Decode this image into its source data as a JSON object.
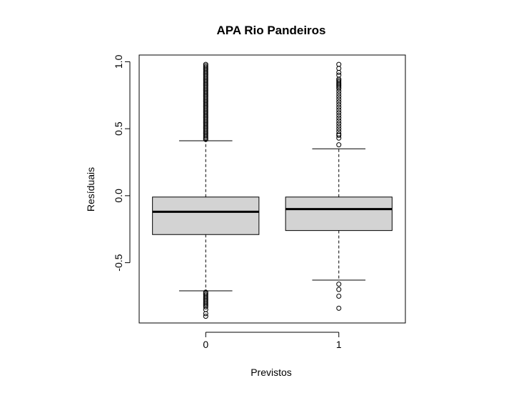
{
  "chart_data": {
    "type": "boxplot",
    "title": "APA Rio Pandeiros",
    "xlabel": "Previstos",
    "ylabel": "Resíduais",
    "ylim": [
      -0.95,
      1.05
    ],
    "yticks": [
      1.0,
      0.5,
      0.0,
      -0.5
    ],
    "ytick_labels": [
      "1.0",
      "0.5",
      "0.0",
      "-0.5"
    ],
    "categories": [
      "0",
      "1"
    ],
    "boxes": [
      {
        "category": "0",
        "whisker_high": 0.41,
        "q3": -0.01,
        "median": -0.12,
        "q1": -0.29,
        "whisker_low": -0.71,
        "outliers_high": [
          0.42,
          0.43,
          0.44,
          0.45,
          0.46,
          0.47,
          0.48,
          0.49,
          0.5,
          0.51,
          0.52,
          0.53,
          0.54,
          0.55,
          0.56,
          0.57,
          0.58,
          0.59,
          0.6,
          0.61,
          0.62,
          0.63,
          0.64,
          0.65,
          0.66,
          0.67,
          0.68,
          0.69,
          0.7,
          0.71,
          0.72,
          0.73,
          0.74,
          0.75,
          0.76,
          0.77,
          0.78,
          0.79,
          0.8,
          0.81,
          0.82,
          0.83,
          0.84,
          0.85,
          0.86,
          0.87,
          0.88,
          0.89,
          0.9,
          0.91,
          0.92,
          0.93,
          0.94,
          0.95,
          0.96,
          0.97,
          0.98
        ],
        "outliers_low": [
          -0.72,
          -0.73,
          -0.74,
          -0.75,
          -0.76,
          -0.77,
          -0.78,
          -0.79,
          -0.8,
          -0.81,
          -0.82,
          -0.83,
          -0.85,
          -0.88,
          -0.9
        ]
      },
      {
        "category": "1",
        "whisker_high": 0.35,
        "q3": -0.01,
        "median": -0.1,
        "q1": -0.26,
        "whisker_low": -0.63,
        "outliers_high": [
          0.38,
          0.43,
          0.45,
          0.46,
          0.48,
          0.5,
          0.52,
          0.54,
          0.56,
          0.58,
          0.6,
          0.62,
          0.64,
          0.66,
          0.68,
          0.7,
          0.72,
          0.74,
          0.76,
          0.78,
          0.8,
          0.81,
          0.82,
          0.83,
          0.84,
          0.85,
          0.86,
          0.87,
          0.9,
          0.92,
          0.95,
          0.98
        ],
        "outliers_low": [
          -0.66,
          -0.7,
          -0.75,
          -0.84
        ]
      }
    ],
    "box_fill": "#d3d3d3",
    "stroke": "#000000",
    "grid": false
  }
}
